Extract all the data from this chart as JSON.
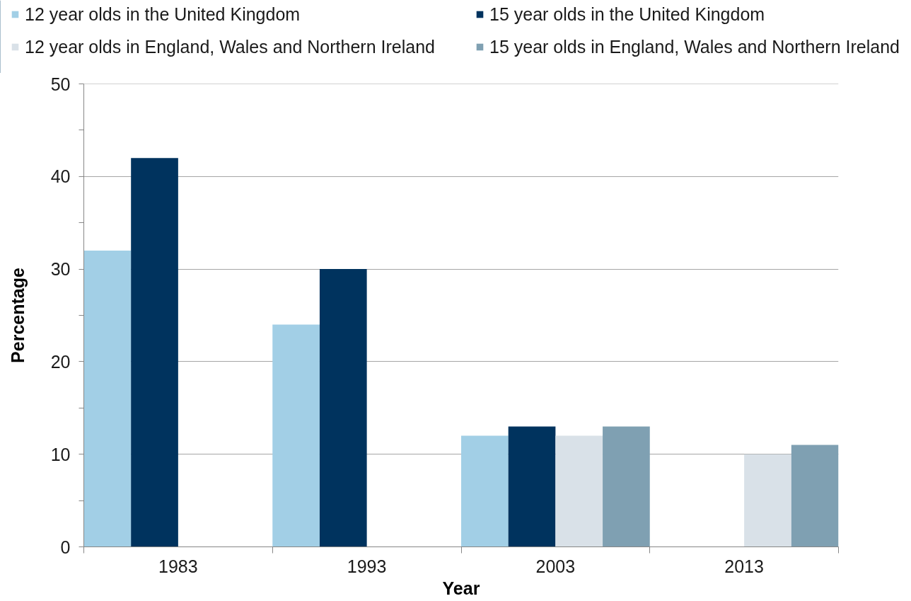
{
  "chart_data": {
    "type": "bar",
    "xlabel": "Year",
    "ylabel": "Percentage",
    "categories": [
      "1983",
      "1993",
      "2003",
      "2013"
    ],
    "series": [
      {
        "name": "12 year olds in the United Kingdom",
        "color": "#a2cfe6",
        "values": [
          32,
          24,
          12,
          null
        ]
      },
      {
        "name": "15 year olds in the United Kingdom",
        "color": "#00335e",
        "values": [
          42,
          30,
          13,
          null
        ]
      },
      {
        "name": "12 year olds in England, Wales and Northern Ireland",
        "color": "#d9e1e8",
        "values": [
          null,
          null,
          12,
          10
        ]
      },
      {
        "name": "15 year olds in England, Wales and Northern Ireland",
        "color": "#7fa0b2",
        "values": [
          null,
          null,
          13,
          11
        ]
      }
    ],
    "ylim": [
      0,
      50
    ],
    "yticks": [
      0,
      10,
      20,
      30,
      40,
      50
    ],
    "grid": "y",
    "legend": "top"
  }
}
